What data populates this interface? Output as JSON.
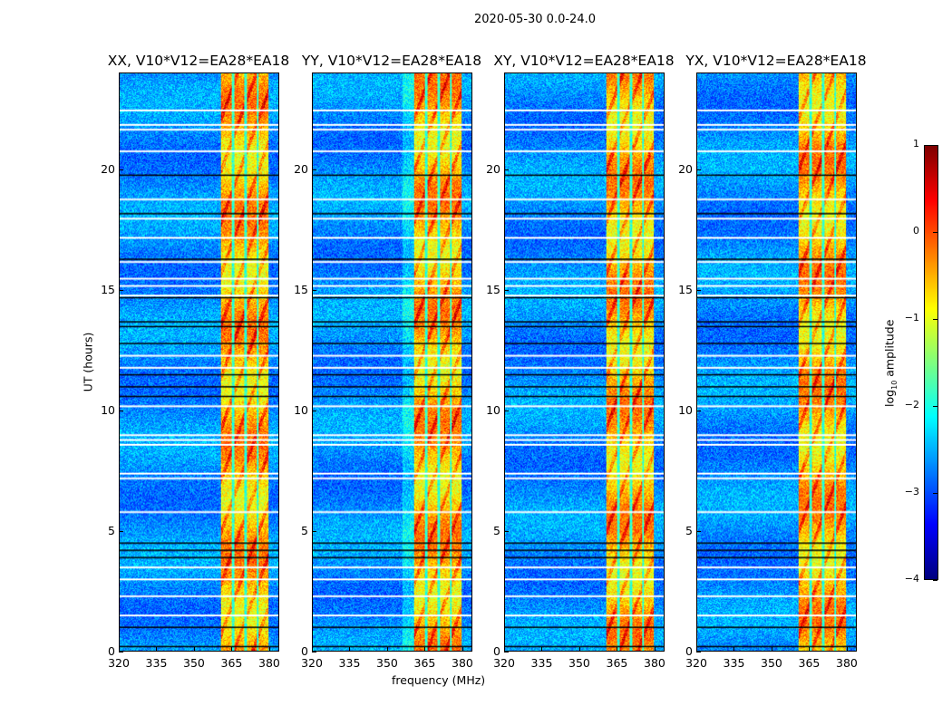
{
  "suptitle": "2020-05-30 0.0-24.0",
  "chart_data": {
    "type": "heatmap",
    "title": "2020-05-30 0.0-24.0",
    "panels": [
      {
        "title": "XX, V10*V12=EA28*EA18"
      },
      {
        "title": "YY, V10*V12=EA28*EA18"
      },
      {
        "title": "XY, V10*V12=EA28*EA18"
      },
      {
        "title": "YX, V10*V12=EA28*EA18"
      }
    ],
    "xlabel": "frequency (MHz)",
    "ylabel": "UT (hours)",
    "xlim": [
      320,
      384
    ],
    "ylim": [
      0,
      24
    ],
    "xticks": [
      "320",
      "335",
      "350",
      "365",
      "380"
    ],
    "yticks": [
      "0",
      "5",
      "10",
      "15",
      "20"
    ],
    "colorbar": {
      "label": "log10 amplitude",
      "label_main": "log",
      "label_sub": "10",
      "label_rest": " amplitude",
      "range": [
        -4,
        1
      ],
      "ticks": [
        "1",
        "0",
        "−1",
        "−2",
        "−3",
        "−4"
      ],
      "colormap": "jet"
    },
    "bright_band_mhz": [
      360.5,
      380
    ],
    "gap_channels_mhz": [
      365.5,
      370.5,
      375.5
    ],
    "flagged_white_times_hours": [
      1.5,
      2.3,
      3.0,
      3.5,
      5.8,
      7.2,
      7.4,
      8.6,
      8.8,
      9.0,
      10.2,
      11.8,
      12.3,
      14.8,
      15.2,
      15.5,
      16.2,
      17.2,
      18.0,
      18.8,
      20.8,
      21.7,
      21.9,
      22.5
    ],
    "flagged_black_times_hours": [
      0.2,
      1.0,
      3.9,
      4.2,
      4.5,
      10.6,
      11.0,
      11.5,
      12.8,
      13.5,
      13.7,
      14.7,
      16.3,
      18.2,
      19.8
    ]
  }
}
